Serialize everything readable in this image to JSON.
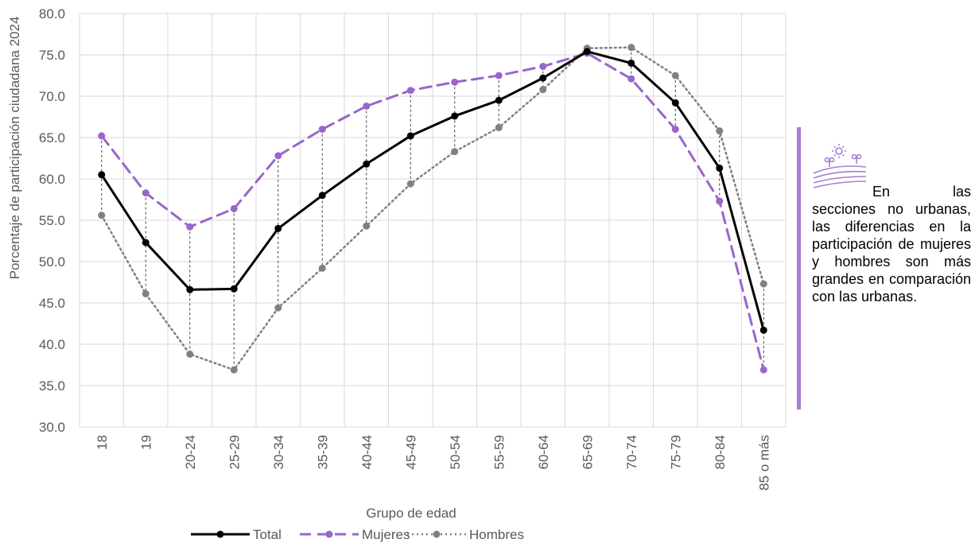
{
  "chart_data": {
    "type": "line",
    "xlabel": "Grupo de edad",
    "ylabel": "Porcentaje de participación ciudadana 2024",
    "ylim": [
      30,
      80
    ],
    "ytick_step": 5,
    "ytick_labels": [
      "30.0",
      "35.0",
      "40.0",
      "45.0",
      "50.0",
      "55.0",
      "60.0",
      "65.0",
      "70.0",
      "75.0",
      "80.0"
    ],
    "grid": true,
    "legend_position": "bottom",
    "categories": [
      "18",
      "19",
      "20-24",
      "25-29",
      "30-34",
      "35-39",
      "40-44",
      "45-49",
      "50-54",
      "55-59",
      "60-64",
      "65-69",
      "70-74",
      "75-79",
      "80-84",
      "85 o más"
    ],
    "series": [
      {
        "name": "Total",
        "color": "#000000",
        "style": "solid",
        "values": [
          60.5,
          52.3,
          46.6,
          46.7,
          54.0,
          58.0,
          61.8,
          65.2,
          67.6,
          69.5,
          72.2,
          75.4,
          74.0,
          69.2,
          61.3,
          41.7
        ]
      },
      {
        "name": "Mujeres",
        "color": "#9966cc",
        "style": "dashed",
        "values": [
          65.2,
          58.3,
          54.2,
          56.4,
          62.8,
          66.0,
          68.8,
          70.7,
          71.7,
          72.5,
          73.6,
          75.2,
          72.1,
          66.0,
          57.3,
          36.9
        ]
      },
      {
        "name": "Hombres",
        "color": "#808080",
        "style": "dotted",
        "values": [
          55.6,
          46.1,
          38.8,
          36.9,
          44.4,
          49.2,
          54.3,
          59.4,
          63.3,
          66.2,
          70.8,
          75.8,
          75.9,
          72.5,
          65.8,
          47.3
        ]
      }
    ]
  },
  "annotation": {
    "text": "En las secciones no urbanas, las diferencias en la participación de mujeres y hombres son más grandes en comparación con las urbanas.",
    "accent_color": "#a77ed0",
    "icon": "rural-landscape-icon"
  }
}
